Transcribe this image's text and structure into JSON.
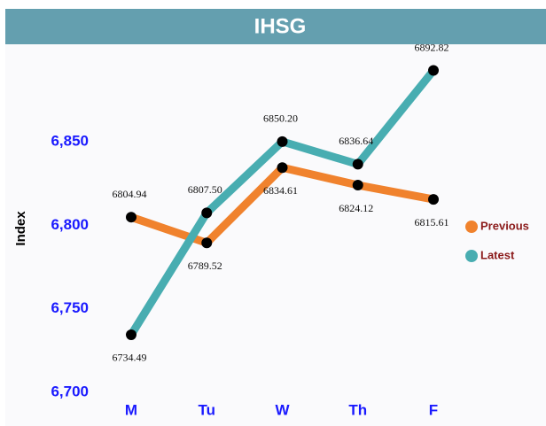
{
  "chart_data": {
    "type": "line",
    "title": "IHSG",
    "y_label": "Index",
    "categories": [
      "M",
      "Tu",
      "W",
      "Th",
      "F"
    ],
    "series": [
      {
        "name": "Previous",
        "color": "#f0822d",
        "values": [
          6804.94,
          6789.52,
          6834.61,
          6824.12,
          6815.61
        ],
        "value_labels": [
          "6804.94",
          "6789.52",
          "6834.61",
          "6824.12",
          "6815.61"
        ]
      },
      {
        "name": "Latest",
        "color": "#48adb1",
        "values": [
          6734.49,
          6807.5,
          6850.2,
          6836.64,
          6892.82
        ],
        "value_labels": [
          "6734.49",
          "6807.50",
          "6850.20",
          "6836.64",
          "6892.82"
        ]
      }
    ],
    "ylim": [
      6700,
      6900
    ],
    "yticks": [
      {
        "value": 6700,
        "label": "6,700"
      },
      {
        "value": 6750,
        "label": "6,750"
      },
      {
        "value": 6800,
        "label": "6,800"
      },
      {
        "value": 6850,
        "label": "6,850"
      }
    ],
    "legend": "right"
  }
}
